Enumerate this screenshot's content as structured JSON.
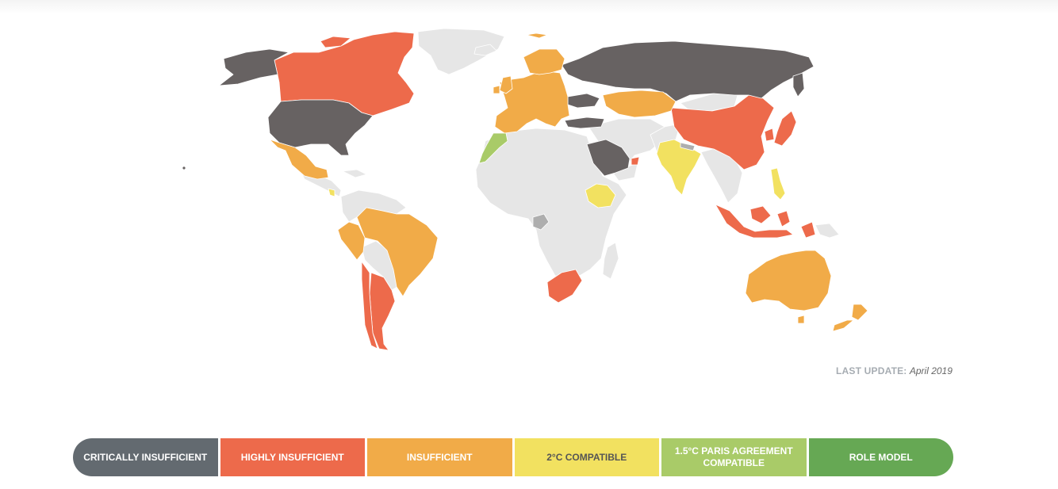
{
  "update": {
    "label": "LAST UPDATE:",
    "value": "April 2019"
  },
  "colors": {
    "critically_insufficient": "#676262",
    "highly_insufficient": "#ed6a4b",
    "insufficient": "#f1ab48",
    "two_c_compatible": "#f2e160",
    "one_five_c_compatible": "#a9cb68",
    "role_model": "#66a854",
    "no_data": "#e6e6e6",
    "not_assessed_grey": "#aeaeae",
    "legend_critical": "#636a70"
  },
  "legend": [
    {
      "label": "CRITICALLY INSUFFICIENT",
      "color": "#636a70"
    },
    {
      "label": "HIGHLY INSUFFICIENT",
      "color": "#ed6a4b"
    },
    {
      "label": "INSUFFICIENT",
      "color": "#f1ab48"
    },
    {
      "label": "2°C COMPATIBLE",
      "color": "#f2e160"
    },
    {
      "label": "1.5°C PARIS AGREEMENT COMPATIBLE",
      "color": "#a9cb68"
    },
    {
      "label": "ROLE MODEL",
      "color": "#66a854"
    }
  ],
  "ratings": [
    {
      "region": "USA",
      "rating": "critically_insufficient"
    },
    {
      "region": "Russia",
      "rating": "critically_insufficient"
    },
    {
      "region": "Saudi Arabia",
      "rating": "critically_insufficient"
    },
    {
      "region": "Turkey",
      "rating": "critically_insufficient"
    },
    {
      "region": "Ukraine",
      "rating": "critically_insufficient"
    },
    {
      "region": "Canada",
      "rating": "highly_insufficient"
    },
    {
      "region": "China",
      "rating": "highly_insufficient"
    },
    {
      "region": "Japan",
      "rating": "highly_insufficient"
    },
    {
      "region": "Indonesia",
      "rating": "highly_insufficient"
    },
    {
      "region": "South Africa",
      "rating": "highly_insufficient"
    },
    {
      "region": "Argentina",
      "rating": "highly_insufficient"
    },
    {
      "region": "Chile",
      "rating": "highly_insufficient"
    },
    {
      "region": "UAE",
      "rating": "highly_insufficient"
    },
    {
      "region": "South Korea",
      "rating": "highly_insufficient"
    },
    {
      "region": "EU",
      "rating": "insufficient"
    },
    {
      "region": "Norway",
      "rating": "insufficient"
    },
    {
      "region": "Kazakhstan",
      "rating": "insufficient"
    },
    {
      "region": "Mexico",
      "rating": "insufficient"
    },
    {
      "region": "Brazil",
      "rating": "insufficient"
    },
    {
      "region": "Peru",
      "rating": "insufficient"
    },
    {
      "region": "Australia",
      "rating": "insufficient"
    },
    {
      "region": "New Zealand",
      "rating": "insufficient"
    },
    {
      "region": "India",
      "rating": "two_c_compatible"
    },
    {
      "region": "Ethiopia",
      "rating": "two_c_compatible"
    },
    {
      "region": "Philippines",
      "rating": "two_c_compatible"
    },
    {
      "region": "Costa Rica",
      "rating": "two_c_compatible"
    },
    {
      "region": "Morocco",
      "rating": "one_five_c_compatible"
    }
  ]
}
